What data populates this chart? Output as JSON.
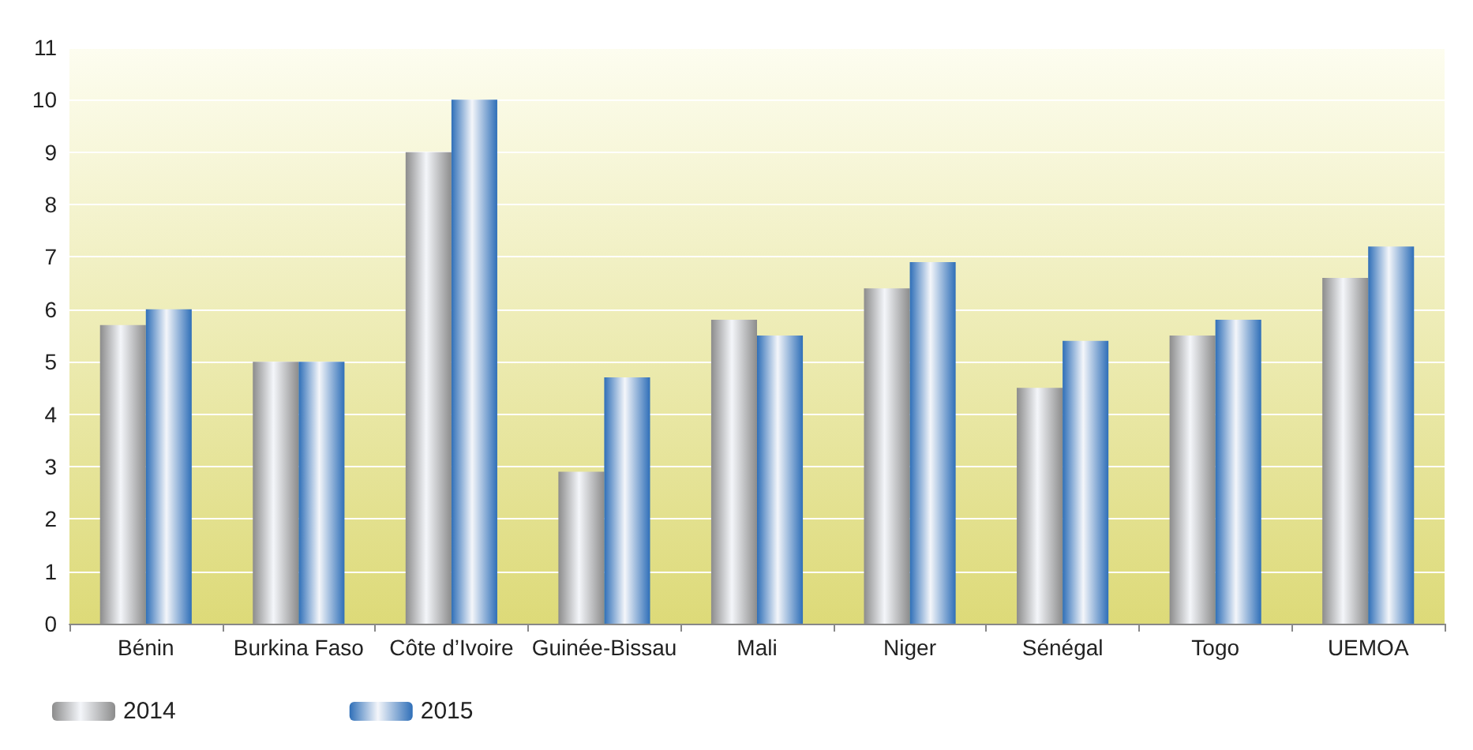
{
  "chart_data": {
    "type": "bar",
    "categories": [
      "Bénin",
      "Burkina Faso",
      "Côte d’Ivoire",
      "Guinée-Bissau",
      "Mali",
      "Niger",
      "Sénégal",
      "Togo",
      "UEMOA"
    ],
    "series": [
      {
        "name": "2014",
        "color": "#8c8c8c",
        "values": [
          5.7,
          5.0,
          9.0,
          2.9,
          5.8,
          6.4,
          4.5,
          5.5,
          6.6
        ]
      },
      {
        "name": "2015",
        "color": "#2f6fb8",
        "values": [
          6.0,
          5.0,
          10.0,
          4.7,
          5.5,
          6.9,
          5.4,
          5.8,
          7.2
        ]
      }
    ],
    "ylim": [
      0,
      11
    ],
    "yticks": [
      0,
      1,
      2,
      3,
      4,
      5,
      6,
      7,
      8,
      9,
      10,
      11
    ],
    "grid": "y",
    "legend": "bottom left"
  }
}
